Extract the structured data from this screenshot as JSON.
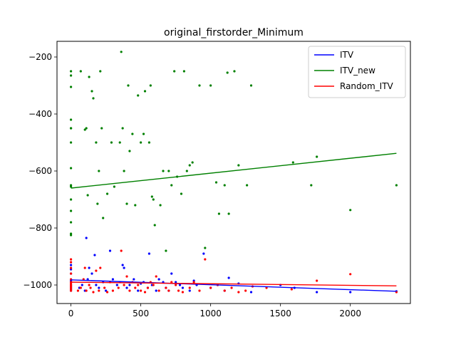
{
  "chart_data": {
    "type": "scatter",
    "title": "original_firstorder_Minimum",
    "xlabel": "",
    "ylabel": "",
    "xlim": [
      -100,
      2430
    ],
    "ylim": [
      -1065,
      -145
    ],
    "xticks": [
      0,
      500,
      1000,
      1500,
      2000
    ],
    "yticks": [
      -1000,
      -800,
      -600,
      -400,
      -200
    ],
    "grid": false,
    "legend_position": "top-right",
    "legend": [
      {
        "label": "ITV",
        "color": "#0000ff"
      },
      {
        "label": "ITV_new",
        "color": "#008000"
      },
      {
        "label": "Random_ITV",
        "color": "#ff0000"
      }
    ],
    "series": [
      {
        "name": "ITV",
        "color": "#0000ff",
        "trend": {
          "x": [
            0,
            2330
          ],
          "y": [
            -982,
            -1022
          ]
        },
        "points": [
          [
            0,
            -985
          ],
          [
            0,
            -1000
          ],
          [
            0,
            -1010
          ],
          [
            0,
            -1020
          ],
          [
            0,
            -960
          ],
          [
            0,
            -930
          ],
          [
            0,
            -945
          ],
          [
            0,
            -990
          ],
          [
            0,
            -1015
          ],
          [
            0,
            -1005
          ],
          [
            60,
            -1010
          ],
          [
            80,
            -1000
          ],
          [
            100,
            -1020
          ],
          [
            110,
            -835
          ],
          [
            120,
            -980
          ],
          [
            130,
            -940
          ],
          [
            150,
            -960
          ],
          [
            170,
            -895
          ],
          [
            180,
            -1000
          ],
          [
            200,
            -1010
          ],
          [
            230,
            -990
          ],
          [
            250,
            -1020
          ],
          [
            280,
            -880
          ],
          [
            300,
            -980
          ],
          [
            330,
            -1000
          ],
          [
            350,
            -990
          ],
          [
            370,
            -930
          ],
          [
            380,
            -940
          ],
          [
            400,
            -1010
          ],
          [
            420,
            -1000
          ],
          [
            450,
            -980
          ],
          [
            480,
            -1020
          ],
          [
            500,
            -995
          ],
          [
            520,
            -990
          ],
          [
            550,
            -1010
          ],
          [
            560,
            -890
          ],
          [
            580,
            -1000
          ],
          [
            610,
            -1020
          ],
          [
            630,
            -980
          ],
          [
            660,
            -990
          ],
          [
            680,
            -1010
          ],
          [
            700,
            -1020
          ],
          [
            720,
            -960
          ],
          [
            750,
            -990
          ],
          [
            780,
            -1000
          ],
          [
            800,
            -1010
          ],
          [
            850,
            -1020
          ],
          [
            880,
            -985
          ],
          [
            900,
            -1000
          ],
          [
            950,
            -890
          ],
          [
            1000,
            -1010
          ],
          [
            1050,
            -1000
          ],
          [
            1100,
            -1020
          ],
          [
            1130,
            -975
          ],
          [
            1200,
            -995
          ],
          [
            1290,
            -1025
          ],
          [
            1500,
            -1000
          ],
          [
            1600,
            -1010
          ],
          [
            1760,
            -1025
          ],
          [
            2000,
            -1025
          ],
          [
            2330,
            -1022
          ]
        ]
      },
      {
        "name": "ITV_new",
        "color": "#008000",
        "trend": {
          "x": [
            0,
            2330
          ],
          "y": [
            -660,
            -538
          ]
        },
        "points": [
          [
            0,
            -250
          ],
          [
            0,
            -265
          ],
          [
            0,
            -305
          ],
          [
            0,
            -420
          ],
          [
            0,
            -450
          ],
          [
            0,
            -500
          ],
          [
            0,
            -590
          ],
          [
            0,
            -650
          ],
          [
            0,
            -655
          ],
          [
            0,
            -700
          ],
          [
            0,
            -740
          ],
          [
            0,
            -780
          ],
          [
            0,
            -820
          ],
          [
            0,
            -825
          ],
          [
            0,
            -450
          ],
          [
            70,
            -250
          ],
          [
            100,
            -455
          ],
          [
            110,
            -450
          ],
          [
            120,
            -685
          ],
          [
            130,
            -270
          ],
          [
            150,
            -320
          ],
          [
            160,
            -345
          ],
          [
            180,
            -500
          ],
          [
            190,
            -715
          ],
          [
            200,
            -600
          ],
          [
            210,
            -250
          ],
          [
            220,
            -450
          ],
          [
            230,
            -765
          ],
          [
            260,
            -680
          ],
          [
            290,
            -500
          ],
          [
            310,
            -655
          ],
          [
            350,
            -500
          ],
          [
            360,
            -182
          ],
          [
            370,
            -450
          ],
          [
            380,
            -600
          ],
          [
            400,
            -715
          ],
          [
            410,
            -300
          ],
          [
            420,
            -530
          ],
          [
            440,
            -470
          ],
          [
            460,
            -720
          ],
          [
            480,
            -335
          ],
          [
            500,
            -500
          ],
          [
            520,
            -470
          ],
          [
            530,
            -320
          ],
          [
            570,
            -300
          ],
          [
            560,
            -500
          ],
          [
            580,
            -690
          ],
          [
            590,
            -700
          ],
          [
            600,
            -790
          ],
          [
            640,
            -720
          ],
          [
            660,
            -600
          ],
          [
            680,
            -880
          ],
          [
            700,
            -600
          ],
          [
            720,
            -650
          ],
          [
            740,
            -250
          ],
          [
            760,
            -620
          ],
          [
            790,
            -680
          ],
          [
            810,
            -250
          ],
          [
            830,
            -600
          ],
          [
            850,
            -580
          ],
          [
            870,
            -570
          ],
          [
            920,
            -300
          ],
          [
            960,
            -870
          ],
          [
            1000,
            -300
          ],
          [
            1040,
            -640
          ],
          [
            1060,
            -750
          ],
          [
            1100,
            -650
          ],
          [
            1120,
            -255
          ],
          [
            1130,
            -750
          ],
          [
            1170,
            -250
          ],
          [
            1200,
            -580
          ],
          [
            1260,
            -650
          ],
          [
            1290,
            -300
          ],
          [
            1590,
            -570
          ],
          [
            1720,
            -650
          ],
          [
            1760,
            -550
          ],
          [
            2000,
            -737
          ],
          [
            2330,
            -650
          ]
        ]
      },
      {
        "name": "Random_ITV",
        "color": "#ff0000",
        "trend": {
          "x": [
            0,
            2330
          ],
          "y": [
            -990,
            -1003
          ]
        },
        "points": [
          [
            0,
            -1000
          ],
          [
            0,
            -1010
          ],
          [
            0,
            -1020
          ],
          [
            0,
            -990
          ],
          [
            0,
            -980
          ],
          [
            0,
            -960
          ],
          [
            0,
            -940
          ],
          [
            0,
            -920
          ],
          [
            0,
            -910
          ],
          [
            0,
            -1005
          ],
          [
            0,
            -995
          ],
          [
            0,
            -1015
          ],
          [
            50,
            -1020
          ],
          [
            70,
            -1010
          ],
          [
            90,
            -980
          ],
          [
            100,
            -940
          ],
          [
            110,
            -1020
          ],
          [
            130,
            -1000
          ],
          [
            140,
            -1010
          ],
          [
            160,
            -1025
          ],
          [
            180,
            -950
          ],
          [
            200,
            -1020
          ],
          [
            210,
            -940
          ],
          [
            240,
            -1010
          ],
          [
            260,
            -1025
          ],
          [
            280,
            -990
          ],
          [
            300,
            -1020
          ],
          [
            340,
            -1010
          ],
          [
            360,
            -880
          ],
          [
            380,
            -1000
          ],
          [
            400,
            -970
          ],
          [
            420,
            -1020
          ],
          [
            440,
            -990
          ],
          [
            460,
            -1010
          ],
          [
            480,
            -1000
          ],
          [
            500,
            -1020
          ],
          [
            530,
            -1025
          ],
          [
            550,
            -1010
          ],
          [
            570,
            -990
          ],
          [
            590,
            -1000
          ],
          [
            610,
            -970
          ],
          [
            630,
            -1020
          ],
          [
            680,
            -1010
          ],
          [
            700,
            -1020
          ],
          [
            720,
            -990
          ],
          [
            750,
            -1000
          ],
          [
            770,
            -1020
          ],
          [
            800,
            -1025
          ],
          [
            850,
            -1010
          ],
          [
            880,
            -990
          ],
          [
            920,
            -1020
          ],
          [
            960,
            -910
          ],
          [
            1000,
            -1010
          ],
          [
            1050,
            -1000
          ],
          [
            1100,
            -1020
          ],
          [
            1150,
            -1010
          ],
          [
            1200,
            -1025
          ],
          [
            1250,
            -1020
          ],
          [
            1300,
            -1005
          ],
          [
            1400,
            -1010
          ],
          [
            1580,
            -1015
          ],
          [
            1760,
            -985
          ],
          [
            2000,
            -962
          ],
          [
            2330,
            -1025
          ]
        ]
      }
    ]
  }
}
